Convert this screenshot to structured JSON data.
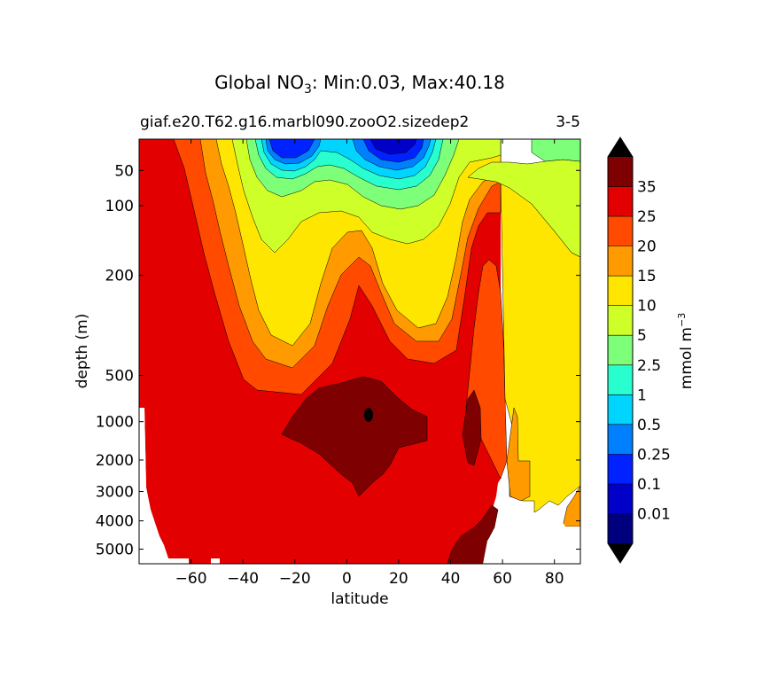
{
  "chart_data": {
    "type": "contour",
    "title": {
      "prefix": "Global NO",
      "sub": "3",
      "suffix": ": Min:0.03, Max:40.18"
    },
    "subtitle_left": "giaf.e20.T62.g16.marbl090.zooO2.sizedep2",
    "subtitle_right": "3-5",
    "xlabel": "latitude",
    "ylabel": "depth (m)",
    "xlim": [
      -80,
      90
    ],
    "x_ticks": [
      -60,
      -40,
      -20,
      0,
      20,
      40,
      60,
      80
    ],
    "x_tick_labels": [
      "−60",
      "−40",
      "−20",
      "0",
      "20",
      "40",
      "60",
      "80"
    ],
    "y_scale": "nonlinear (depth, increasing downward)",
    "y_ticks": [
      50,
      100,
      200,
      500,
      1000,
      2000,
      3000,
      4000,
      5000
    ],
    "y_tick_labels": [
      "50",
      "100",
      "200",
      "500",
      "1000",
      "2000",
      "3000",
      "4000",
      "5000"
    ],
    "colorbar": {
      "label": "mmol m",
      "label_sup": "−3",
      "levels": [
        "0.01",
        "0.1",
        "0.25",
        "0.5",
        "1",
        "2.5",
        "5",
        "10",
        "15",
        "20",
        "25",
        "35"
      ],
      "colors": [
        "#00007f",
        "#0000c8",
        "#0022ff",
        "#0080ff",
        "#00d4ff",
        "#29ffce",
        "#7dff7a",
        "#ceff29",
        "#ffe600",
        "#ff9a00",
        "#ff4a00",
        "#e30000",
        "#7f0000"
      ],
      "extend": "both"
    },
    "fields": [
      {
        "range": "25-35",
        "description": "dominant below ~500 m and south of ~60N"
      },
      {
        "range": ">35",
        "description": "intermediate-water core near 1000 m, ~-25 to 30 lat; deep North Pacific near 45-50N"
      },
      {
        "range": "<1",
        "description": "subtropical surface minima near -25 and 15 lat"
      }
    ]
  }
}
